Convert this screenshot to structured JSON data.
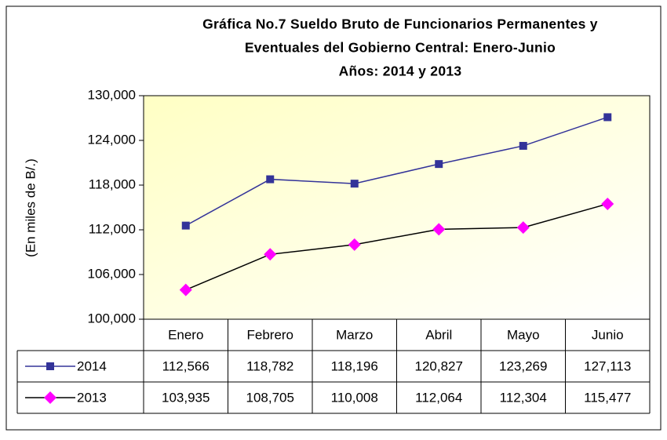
{
  "chart_data": {
    "type": "line",
    "title": [
      "Gráfica No.7 Sueldo Bruto de Funcionarios Permanentes y",
      "Eventuales del Gobierno Central: Enero-Junio",
      "Años: 2014 y 2013"
    ],
    "y_label": "(En miles de B/.)",
    "categories": [
      "Enero",
      "Febrero",
      "Marzo",
      "Abril",
      "Mayo",
      "Junio"
    ],
    "series": [
      {
        "name": "2014",
        "color": "#333399",
        "marker_color": "#333399",
        "marker": "square",
        "values": [
          112566,
          118782,
          118196,
          120827,
          123269,
          127113
        ],
        "value_labels": [
          "112,566",
          "118,782",
          "118,196",
          "120,827",
          "123,269",
          "127,113"
        ]
      },
      {
        "name": "2013",
        "color": "#000000",
        "marker_color": "#ff00ff",
        "marker": "diamond",
        "values": [
          103935,
          108705,
          110008,
          112064,
          112304,
          115477
        ],
        "value_labels": [
          "103,935",
          "108,705",
          "110,008",
          "112,064",
          "112,304",
          "115,477"
        ]
      }
    ],
    "ylim": [
      100000,
      130000
    ],
    "yticks": [
      {
        "value": 100000,
        "label": "100,000"
      },
      {
        "value": 106000,
        "label": "106,000"
      },
      {
        "value": 112000,
        "label": "112,000"
      },
      {
        "value": 118000,
        "label": "118,000"
      },
      {
        "value": 124000,
        "label": "124,000"
      },
      {
        "value": 130000,
        "label": "130,000"
      }
    ],
    "grid": false,
    "data_table": true
  }
}
